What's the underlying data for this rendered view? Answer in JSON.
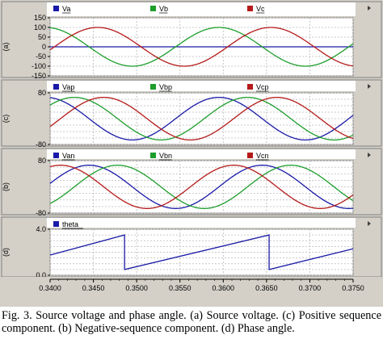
{
  "chart_data": {
    "type": "line",
    "x_axis": {
      "range": [
        0.34,
        0.375
      ],
      "tick_labels": [
        "0.3400",
        "0.3450",
        "0.3500",
        "0.3550",
        "0.3600",
        "0.3650",
        "0.3700",
        "0.3750"
      ],
      "tick_values": [
        0.34,
        0.345,
        0.35,
        0.355,
        0.36,
        0.365,
        0.37,
        0.375
      ]
    },
    "panels": [
      {
        "id": "a",
        "ylabel": "(a)",
        "ylim": [
          -150,
          150
        ],
        "tick_values": [
          150,
          100,
          50,
          0,
          -50,
          -100,
          -150
        ],
        "tick_labels": [
          "150",
          "100",
          "50",
          "0",
          "-50",
          "-100",
          "-150"
        ],
        "grid": true,
        "legend_placement": "top",
        "series": [
          {
            "name": "Va",
            "color": "#1a1aa8",
            "values": [
              0,
              0,
              0,
              0,
              0,
              0,
              0,
              0,
              0
            ]
          },
          {
            "name": "Vb",
            "color": "#1d9e2c",
            "amplitude": 100,
            "frequency_hz": 50,
            "peak_times": [
              0.3395,
              0.3495,
              0.3595,
              0.3695
            ]
          },
          {
            "name": "Vc",
            "color": "#b51a1a",
            "amplitude": 100,
            "frequency_hz": 50,
            "peak_times": [
              0.3455,
              0.3555,
              0.3655
            ]
          }
        ]
      },
      {
        "id": "c",
        "ylabel": "(c)",
        "ylim": [
          -80,
          80
        ],
        "tick_values": [
          80,
          -80
        ],
        "tick_labels": [
          "80",
          "-80"
        ],
        "grid": true,
        "legend_placement": "top",
        "series": [
          {
            "name": "Vap",
            "color": "#1a1aa8",
            "amplitude": 66,
            "frequency_hz": 50,
            "peak_times": [
              0.3395,
              0.3495,
              0.3595,
              0.3695
            ]
          },
          {
            "name": "Vbp",
            "color": "#1d9e2c",
            "amplitude": 66,
            "frequency_hz": 50,
            "peak_times": [
              0.3428,
              0.3528,
              0.3628,
              0.3728
            ]
          },
          {
            "name": "Vcp",
            "color": "#b51a1a",
            "amplitude": 66,
            "frequency_hz": 50,
            "peak_times": [
              0.3462,
              0.3562,
              0.3662
            ]
          }
        ]
      },
      {
        "id": "b",
        "ylabel": "(b)",
        "ylim": [
          -80,
          80
        ],
        "tick_values": [
          80,
          -80
        ],
        "tick_labels": [
          "80",
          "-80"
        ],
        "grid": true,
        "legend_placement": "top",
        "series": [
          {
            "name": "Van",
            "color": "#1a1aa8",
            "amplitude": 66,
            "frequency_hz": 50,
            "peak_times": [
              0.3445,
              0.3545,
              0.3645,
              0.3745
            ]
          },
          {
            "name": "Vbn",
            "color": "#1d9e2c",
            "amplitude": 66,
            "frequency_hz": 50,
            "peak_times": [
              0.3478,
              0.3578,
              0.3678
            ]
          },
          {
            "name": "Vcn",
            "color": "#b51a1a",
            "amplitude": 66,
            "frequency_hz": 50,
            "peak_times": [
              0.3412,
              0.3512,
              0.3612,
              0.3712
            ]
          }
        ]
      },
      {
        "id": "d",
        "ylabel": "(d)",
        "ylim": [
          0,
          4.0
        ],
        "tick_values": [
          4.0,
          0.0
        ],
        "tick_labels": [
          "4.0",
          "0.0"
        ],
        "grid": true,
        "legend_placement": "top-left",
        "series": [
          {
            "name": "theta",
            "color": "#1a1aa8",
            "x": [
              0.34,
              0.3486,
              0.3486,
              0.3653,
              0.3653,
              0.375
            ],
            "y": [
              1.75,
              3.5,
              0.5,
              3.5,
              0.5,
              2.3
            ]
          }
        ]
      }
    ]
  },
  "caption": "Fig. 3. Source voltage and phase angle. (a) Source voltage. (c) Positive sequence component. (b) Negative-sequence component. (d) Phase angle."
}
